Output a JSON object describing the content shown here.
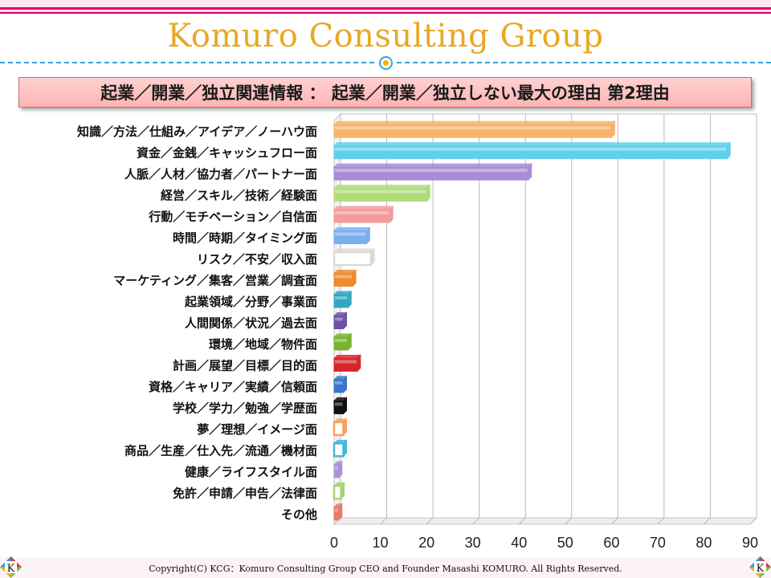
{
  "header": {
    "title": "Komuro Consulting Group"
  },
  "banner": {
    "text": "起業／開業／独立関連情報 ： 起業／開業／独立しない最大の理由 第2理由"
  },
  "footer": {
    "copyright": "Copyright(C) KCG：Komuro Consulting Group CEO and Founder Masashi KOMURO. All Rights Reserved."
  },
  "logos": {
    "left": "K",
    "right": "K"
  },
  "colors": {
    "title": "#e8a824",
    "accent": "#e0006b",
    "dash": "#2aa8d8",
    "banner_bg": "#ffc4c4"
  },
  "chart_data": {
    "type": "bar",
    "orientation": "horizontal",
    "style": "3d",
    "title": "",
    "xlabel": "",
    "ylabel": "",
    "xlim": [
      0,
      90
    ],
    "xticks": [
      0,
      10,
      20,
      30,
      40,
      50,
      60,
      70,
      80,
      90
    ],
    "grid": true,
    "categories": [
      "知識／方法／仕組み／アイデア／ノーハウ面",
      "資金／金銭／キャッシュフロー面",
      "人脈／人材／協力者／パートナー面",
      "経営／スキル／技術／経験面",
      "行動／モチベーション／自信面",
      "時間／時期／タイミング面",
      "リスク／不安／収入面",
      "マーケティング／集客／営業／調査面",
      "起業領域／分野／事業面",
      "人間関係／状況／過去面",
      "環境／地域／物件面",
      "計画／展望／目標／目的面",
      "資格／キャリア／実績／信頼面",
      "学校／学力／勉強／学歴面",
      "夢／理想／イメージ面",
      "商品／生産／仕入先／流通／機材面",
      "健康／ライフスタイル面",
      "免許／申請／申告／法律面",
      "その他"
    ],
    "values": [
      60,
      85,
      42,
      20,
      12,
      7,
      8,
      4,
      3,
      2,
      3,
      5,
      2,
      2,
      2,
      2,
      1,
      1.5,
      1
    ],
    "colors": [
      "#f7b26b",
      "#5fd0ea",
      "#a98cd8",
      "#b2dc7a",
      "#f49a9a",
      "#7aaef0",
      "#d9d9d9",
      "#f08a2c",
      "#31a7c0",
      "#6d52a8",
      "#78b333",
      "#d6262b",
      "#3a74c8",
      "#111111",
      "#f5a35a",
      "#49b7d8",
      "#a794d4",
      "#a8d27a",
      "#e87a6a"
    ],
    "hollow": [
      false,
      false,
      false,
      false,
      false,
      false,
      true,
      false,
      false,
      false,
      false,
      false,
      false,
      false,
      true,
      true,
      false,
      true,
      false
    ]
  }
}
